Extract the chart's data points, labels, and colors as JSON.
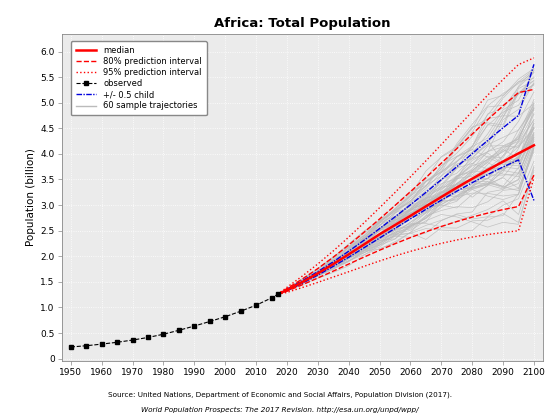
{
  "title": "Africa: Total Population",
  "ylabel": "Population (billion)",
  "source_line1": "Source: United Nations, Department of Economic and Social Affairs, Population Division (2017).",
  "source_line2": "World Population Prospects: The 2017 Revision. http://esa.un.org/unpd/wpp/",
  "xlim": [
    1947,
    2103
  ],
  "ylim": [
    -0.05,
    6.35
  ],
  "yticks": [
    0,
    0.5,
    1.0,
    1.5,
    2.0,
    2.5,
    3.0,
    3.5,
    4.0,
    4.5,
    5.0,
    5.5,
    6.0
  ],
  "ytick_labels": [
    "0",
    "0,5",
    "1",
    "1,5",
    "2",
    "2,5",
    "3",
    "3,5",
    "4",
    "4,5",
    "5",
    "5,5",
    "6"
  ],
  "xticks": [
    1950,
    1960,
    1970,
    1980,
    1990,
    2000,
    2010,
    2020,
    2030,
    2040,
    2050,
    2060,
    2070,
    2080,
    2090,
    2100
  ],
  "observed_years": [
    1950,
    1955,
    1960,
    1965,
    1970,
    1975,
    1980,
    1985,
    1990,
    1995,
    2000,
    2005,
    2010,
    2015,
    2017
  ],
  "observed_values": [
    0.228,
    0.252,
    0.284,
    0.32,
    0.363,
    0.414,
    0.477,
    0.554,
    0.637,
    0.726,
    0.819,
    0.926,
    1.044,
    1.186,
    1.256
  ],
  "median_years": [
    2017,
    2020,
    2025,
    2030,
    2035,
    2040,
    2045,
    2050,
    2055,
    2060,
    2065,
    2070,
    2075,
    2080,
    2085,
    2090,
    2095,
    2100
  ],
  "median_values": [
    1.256,
    1.341,
    1.497,
    1.666,
    1.848,
    2.038,
    2.232,
    2.43,
    2.61,
    2.79,
    2.975,
    3.158,
    3.34,
    3.515,
    3.685,
    3.85,
    4.01,
    4.168
  ],
  "pi80_low_years": [
    2017,
    2020,
    2025,
    2030,
    2035,
    2040,
    2045,
    2050,
    2055,
    2060,
    2065,
    2070,
    2075,
    2080,
    2085,
    2090,
    2095,
    2100
  ],
  "pi80_low_values": [
    1.256,
    1.318,
    1.444,
    1.576,
    1.71,
    1.848,
    1.985,
    2.118,
    2.245,
    2.365,
    2.478,
    2.582,
    2.678,
    2.765,
    2.843,
    2.912,
    2.972,
    3.585
  ],
  "pi80_high_years": [
    2017,
    2020,
    2025,
    2030,
    2035,
    2040,
    2045,
    2050,
    2055,
    2060,
    2065,
    2070,
    2075,
    2080,
    2085,
    2090,
    2095,
    2100
  ],
  "pi80_high_values": [
    1.256,
    1.369,
    1.556,
    1.76,
    1.982,
    2.22,
    2.47,
    2.728,
    2.992,
    3.262,
    3.537,
    3.818,
    4.102,
    4.387,
    4.668,
    4.94,
    5.198,
    5.26
  ],
  "pi95_low_years": [
    2017,
    2020,
    2025,
    2030,
    2035,
    2040,
    2045,
    2050,
    2055,
    2060,
    2065,
    2070,
    2075,
    2080,
    2085,
    2090,
    2095,
    2100
  ],
  "pi95_low_values": [
    1.256,
    1.294,
    1.39,
    1.49,
    1.594,
    1.698,
    1.804,
    1.908,
    2.006,
    2.096,
    2.178,
    2.252,
    2.318,
    2.375,
    2.424,
    2.465,
    2.498,
    3.535
  ],
  "pi95_high_years": [
    2017,
    2020,
    2025,
    2030,
    2035,
    2040,
    2045,
    2050,
    2055,
    2060,
    2065,
    2070,
    2075,
    2080,
    2085,
    2090,
    2095,
    2100
  ],
  "pi95_high_values": [
    1.256,
    1.394,
    1.614,
    1.85,
    2.104,
    2.374,
    2.656,
    2.948,
    3.246,
    3.552,
    3.864,
    4.182,
    4.504,
    4.827,
    5.146,
    5.454,
    5.745,
    5.875
  ],
  "plus05_years": [
    2017,
    2020,
    2025,
    2030,
    2035,
    2040,
    2045,
    2050,
    2055,
    2060,
    2065,
    2070,
    2075,
    2080,
    2085,
    2090,
    2095,
    2100
  ],
  "plus05_values": [
    1.256,
    1.356,
    1.522,
    1.7,
    1.892,
    2.098,
    2.314,
    2.54,
    2.77,
    3.006,
    3.248,
    3.496,
    3.749,
    4.005,
    4.26,
    4.51,
    4.752,
    5.75
  ],
  "minus05_years": [
    2017,
    2020,
    2025,
    2030,
    2035,
    2040,
    2045,
    2050,
    2055,
    2060,
    2065,
    2070,
    2075,
    2080,
    2085,
    2090,
    2095,
    2100
  ],
  "minus05_values": [
    1.256,
    1.326,
    1.474,
    1.632,
    1.803,
    1.982,
    2.168,
    2.356,
    2.545,
    2.732,
    2.916,
    3.096,
    3.27,
    3.437,
    3.596,
    3.745,
    3.882,
    3.09
  ],
  "colors": {
    "median": "#FF0000",
    "pi80": "#FF0000",
    "pi95": "#FF0000",
    "observed": "#000000",
    "plus05": "#0000DD",
    "minus05": "#0000DD",
    "trajectories": "#BBBBBB",
    "background": "#FFFFFF",
    "panel_bg": "#EBEBEB",
    "grid": "#FFFFFF"
  }
}
